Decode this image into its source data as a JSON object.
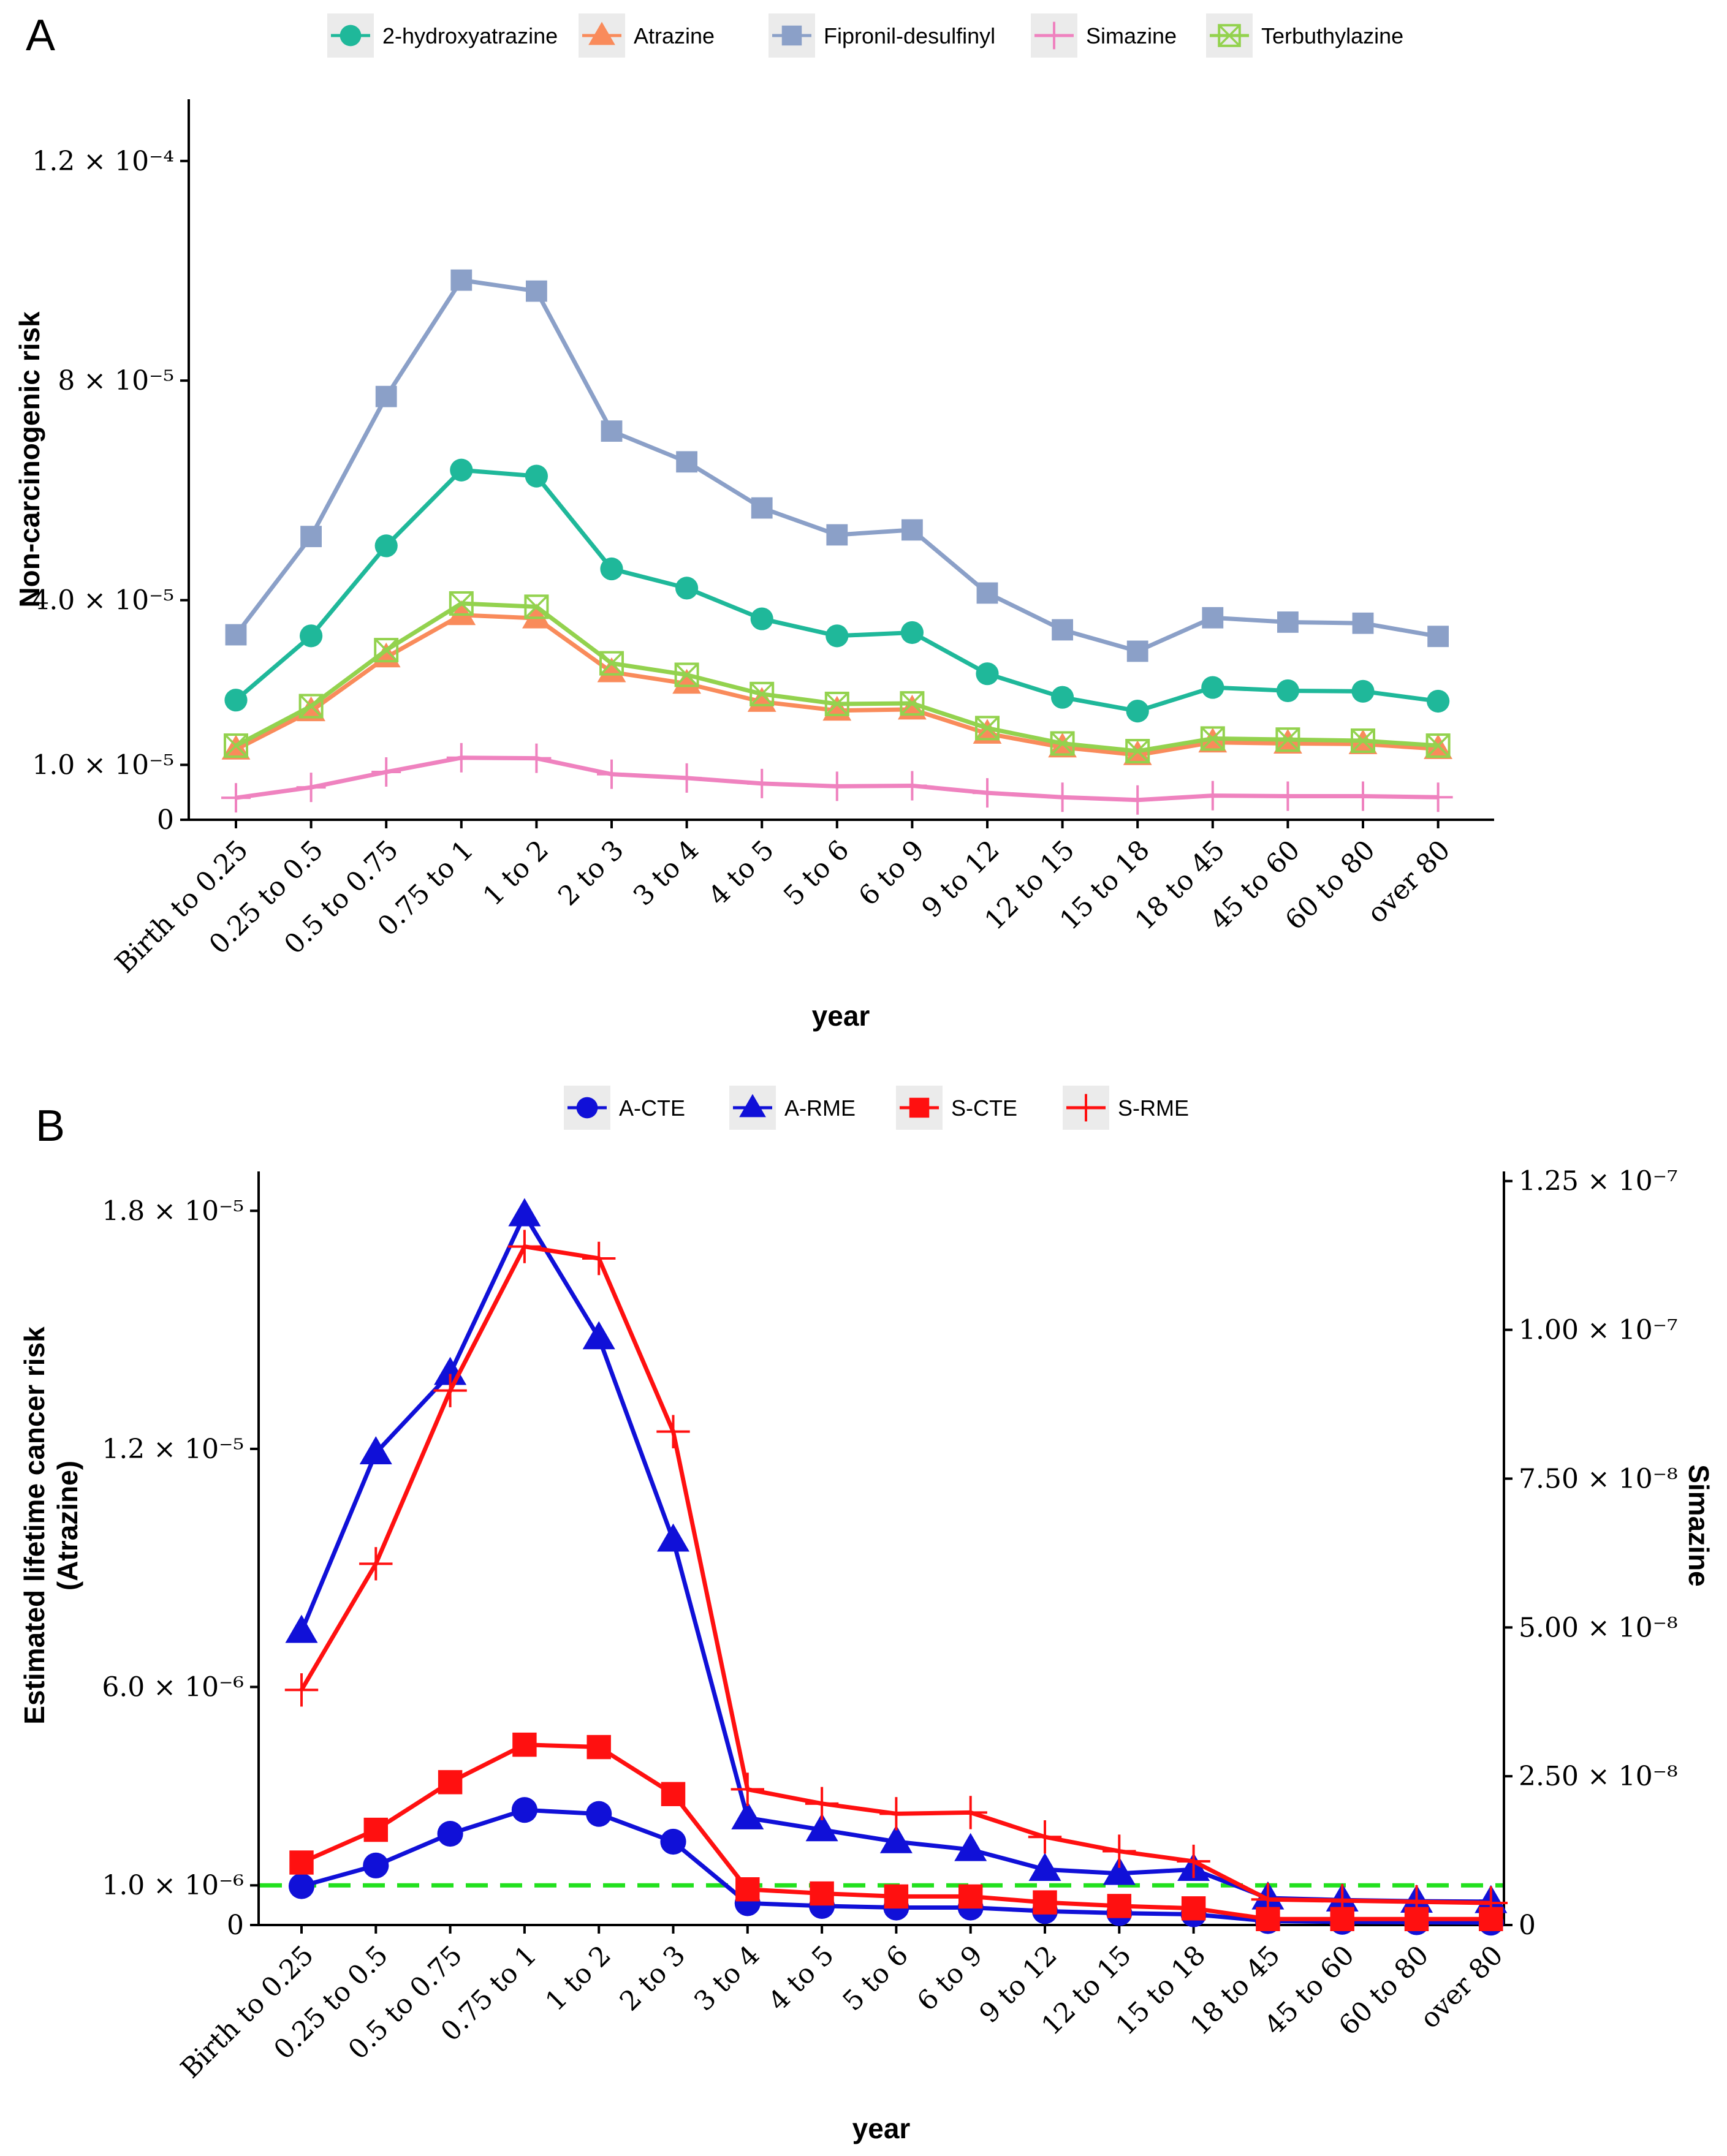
{
  "chart_data": [
    {
      "type": "line",
      "panel_label": "A",
      "title": "",
      "xlabel": "year",
      "ylabel": "Non-carcinogenic risk",
      "ylim": [
        0,
        0.000125
      ],
      "y_ticks": [
        {
          "value": 0,
          "label": "0"
        },
        {
          "value": 1e-05,
          "label": "1.0 × 10⁻⁵"
        },
        {
          "value": 4e-05,
          "label": "4.0 × 10⁻⁵"
        },
        {
          "value": 8e-05,
          "label": "8 × 10⁻⁵"
        },
        {
          "value": 0.00012,
          "label": "1.2 × 10⁻⁴"
        }
      ],
      "categories": [
        "Birth to 0.25",
        "0.25 to 0.5",
        "0.5 to 0.75",
        "0.75 to 1",
        "1 to 2",
        "2 to 3",
        "3 to 4",
        "4 to 5",
        "5 to 6",
        "6 to 9",
        "9 to 12",
        "12 to 15",
        "15 to 18",
        "18 to 45",
        "45 to 60",
        "60 to 80",
        "over 80"
      ],
      "legend_position": "top",
      "series": [
        {
          "name": "2-hydroxyatrazine",
          "color": "#1fb89a",
          "marker": "circle",
          "values": [
            2.18e-05,
            3.35e-05,
            4.99e-05,
            6.37e-05,
            6.26e-05,
            4.57e-05,
            4.22e-05,
            3.66e-05,
            3.35e-05,
            3.41e-05,
            2.66e-05,
            2.23e-05,
            1.98e-05,
            2.41e-05,
            2.35e-05,
            2.34e-05,
            2.16e-05
          ]
        },
        {
          "name": "Atrazine",
          "color": "#f98b5b",
          "marker": "triangle",
          "values": [
            1.28e-05,
            1.98e-05,
            2.96e-05,
            3.73e-05,
            3.67e-05,
            2.69e-05,
            2.48e-05,
            2.15e-05,
            1.99e-05,
            2.01e-05,
            1.57e-05,
            1.32e-05,
            1.18e-05,
            1.41e-05,
            1.39e-05,
            1.38e-05,
            1.29e-05
          ]
        },
        {
          "name": "Fipronil-desulfinyl",
          "color": "#8ba0c8",
          "marker": "square",
          "values": [
            3.37e-05,
            5.16e-05,
            7.71e-05,
            9.83e-05,
            9.63e-05,
            7.08e-05,
            6.52e-05,
            5.68e-05,
            5.19e-05,
            5.28e-05,
            4.13e-05,
            3.46e-05,
            3.07e-05,
            3.68e-05,
            3.6e-05,
            3.58e-05,
            3.34e-05
          ]
        },
        {
          "name": "Simazine",
          "color": "#ef82bf",
          "marker": "plus",
          "values": [
            4e-06,
            5.9e-06,
            8.7e-06,
            1.13e-05,
            1.12e-05,
            8.3e-06,
            7.6e-06,
            6.6e-06,
            6.1e-06,
            6.2e-06,
            4.9e-06,
            4.1e-06,
            3.6e-06,
            4.4e-06,
            4.3e-06,
            4.3e-06,
            4.1e-06
          ]
        },
        {
          "name": "Terbuthylazine",
          "color": "#93d24e",
          "marker": "square-x",
          "values": [
            1.35e-05,
            2.07e-05,
            3.09e-05,
            3.94e-05,
            3.88e-05,
            2.85e-05,
            2.64e-05,
            2.29e-05,
            2.11e-05,
            2.12e-05,
            1.67e-05,
            1.39e-05,
            1.25e-05,
            1.48e-05,
            1.46e-05,
            1.44e-05,
            1.35e-05
          ]
        }
      ]
    },
    {
      "type": "line",
      "panel_label": "B",
      "title": "",
      "xlabel": "year",
      "ylabel": [
        "Estimated lifetime cancer risk",
        "(Atrazine)"
      ],
      "ylabel_right": "Simazine",
      "ylim": [
        0,
        1.89e-05
      ],
      "ylim_right": [
        0,
        1.26e-07
      ],
      "y_ticks": [
        {
          "value": 0,
          "label": "0"
        },
        {
          "value": 1e-06,
          "label": "1.0 × 10⁻⁶"
        },
        {
          "value": 6e-06,
          "label": "6.0 × 10⁻⁶"
        },
        {
          "value": 1.2e-05,
          "label": "1.2 × 10⁻⁵"
        },
        {
          "value": 1.8e-05,
          "label": "1.8 × 10⁻⁵"
        }
      ],
      "y_ticks_right": [
        {
          "value": 0,
          "label": "0"
        },
        {
          "value": 2.5e-08,
          "label": "2.50 × 10⁻⁸"
        },
        {
          "value": 5e-08,
          "label": "5.00 × 10⁻⁸"
        },
        {
          "value": 7.5e-08,
          "label": "7.50 × 10⁻⁸"
        },
        {
          "value": 1e-07,
          "label": "1.00 × 10⁻⁷"
        },
        {
          "value": 1.25e-07,
          "label": "1.25 × 10⁻⁷"
        }
      ],
      "threshold": {
        "value": 1e-06,
        "color": "#22e01e",
        "style": "dashed"
      },
      "categories": [
        "Birth to 0.25",
        "0.25 to 0.5",
        "0.5 to 0.75",
        "0.75 to 1",
        "1 to 2",
        "2 to 3",
        "3 to 4",
        "4 to 5",
        "5 to 6",
        "6 to 9",
        "9 to 12",
        "12 to 15",
        "15 to 18",
        "18 to 45",
        "45 to 60",
        "60 to 80",
        "over 80"
      ],
      "legend_position": "top",
      "series": [
        {
          "name": "A-CTE",
          "color": "#1010d8",
          "marker": "circle",
          "axis": "left",
          "values": [
            9.8e-07,
            1.5e-06,
            2.3e-06,
            2.9e-06,
            2.8e-06,
            2.1e-06,
            5.5e-07,
            4.8e-07,
            4.4e-07,
            4.4e-07,
            3.5e-07,
            3e-07,
            2.7e-07,
            1e-07,
            8e-08,
            7e-08,
            6e-08
          ]
        },
        {
          "name": "A-RME",
          "color": "#1010d8",
          "marker": "triangle",
          "axis": "left",
          "values": [
            7.4e-06,
            1.19e-05,
            1.39e-05,
            1.79e-05,
            1.48e-05,
            9.7e-06,
            2.7e-06,
            2.4e-06,
            2.1e-06,
            1.9e-06,
            1.4e-06,
            1.3e-06,
            1.4e-06,
            6.8e-07,
            6.3e-07,
            6e-07,
            5.9e-07
          ]
        },
        {
          "name": "S-CTE",
          "color": "#ff1010",
          "marker": "square",
          "axis": "right",
          "values": [
            1.05e-08,
            1.6e-08,
            2.4e-08,
            3.03e-08,
            2.99e-08,
            2.2e-08,
            6e-09,
            5.3e-09,
            4.8e-09,
            4.8e-09,
            3.8e-09,
            3.2e-09,
            2.8e-09,
            1e-09,
            1e-09,
            1e-09,
            1e-09
          ]
        },
        {
          "name": "S-RME",
          "color": "#ff1010",
          "marker": "plus",
          "axis": "right",
          "values": [
            3.95e-08,
            6.07e-08,
            8.98e-08,
            1.14e-07,
            1.12e-07,
            8.29e-08,
            2.28e-08,
            2.04e-08,
            1.87e-08,
            1.89e-08,
            1.48e-08,
            1.24e-08,
            1.07e-08,
            4.3e-09,
            4.1e-09,
            3.9e-09,
            3.7e-09
          ]
        }
      ]
    }
  ]
}
